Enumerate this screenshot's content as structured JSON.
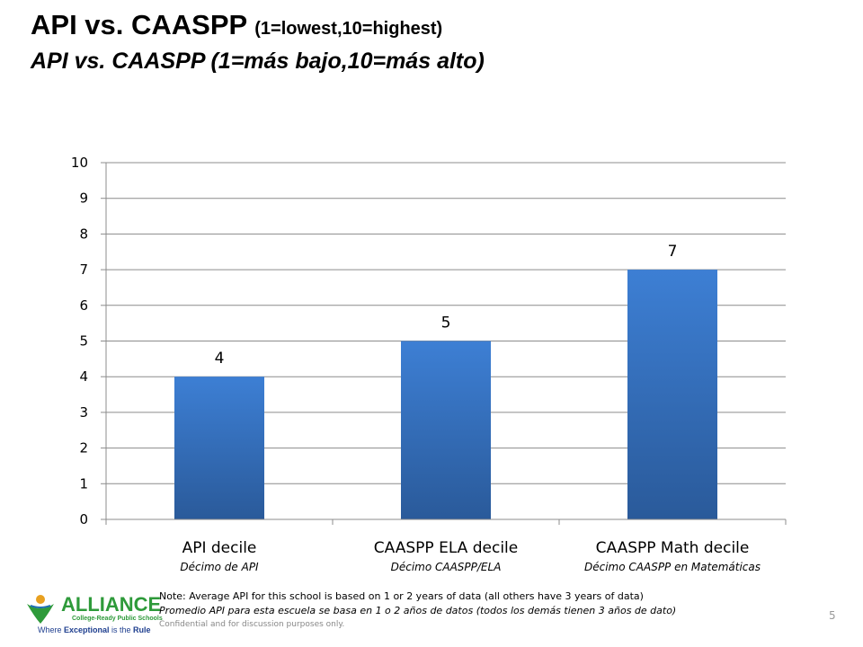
{
  "header": {
    "title_en_main": "API vs. CAASPP",
    "title_en_sub": "(1=lowest,10=highest)",
    "title_es": "API vs. CAASPP (1=más bajo,10=más alto)"
  },
  "chart_data": {
    "type": "bar",
    "categories": [
      "API decile",
      "CAASPP ELA decile",
      "CAASPP Math decile"
    ],
    "categories_es": [
      "Décimo de API",
      "Décimo CAASPP/ELA",
      "Décimo CAASPP en Matemáticas"
    ],
    "values": [
      4,
      5,
      7
    ],
    "data_labels": [
      "4",
      "5",
      "7"
    ],
    "ylim": [
      0,
      10
    ],
    "yticks": [
      0,
      1,
      2,
      3,
      4,
      5,
      6,
      7,
      8,
      9,
      10
    ],
    "grid": true,
    "legend": "none",
    "bar_color_top": "#3d7fd4",
    "bar_color_bottom": "#2a5a9a",
    "gridline_color": "#8c8c8c"
  },
  "footer": {
    "logo_main": "ALLIANCE",
    "logo_sub": "College-Ready Public Schools",
    "logo_tag_pre": "Where ",
    "logo_tag_bold1": "Exceptional",
    "logo_tag_mid": " is the ",
    "logo_tag_bold2": "Rule",
    "note_en": "Note: Average API for this school is based on 1 or 2 years of data (all others have 3 years of data)",
    "note_es": "Promedio API para esta escuela se basa en 1 o 2 años de datos (todos los demás tienen 3 años de dato)",
    "confidential": "Confidential and for discussion purposes only.",
    "page_number": "5"
  },
  "colors": {
    "logo_green": "#2e9a3a",
    "logo_blue": "#1f3f8f"
  }
}
